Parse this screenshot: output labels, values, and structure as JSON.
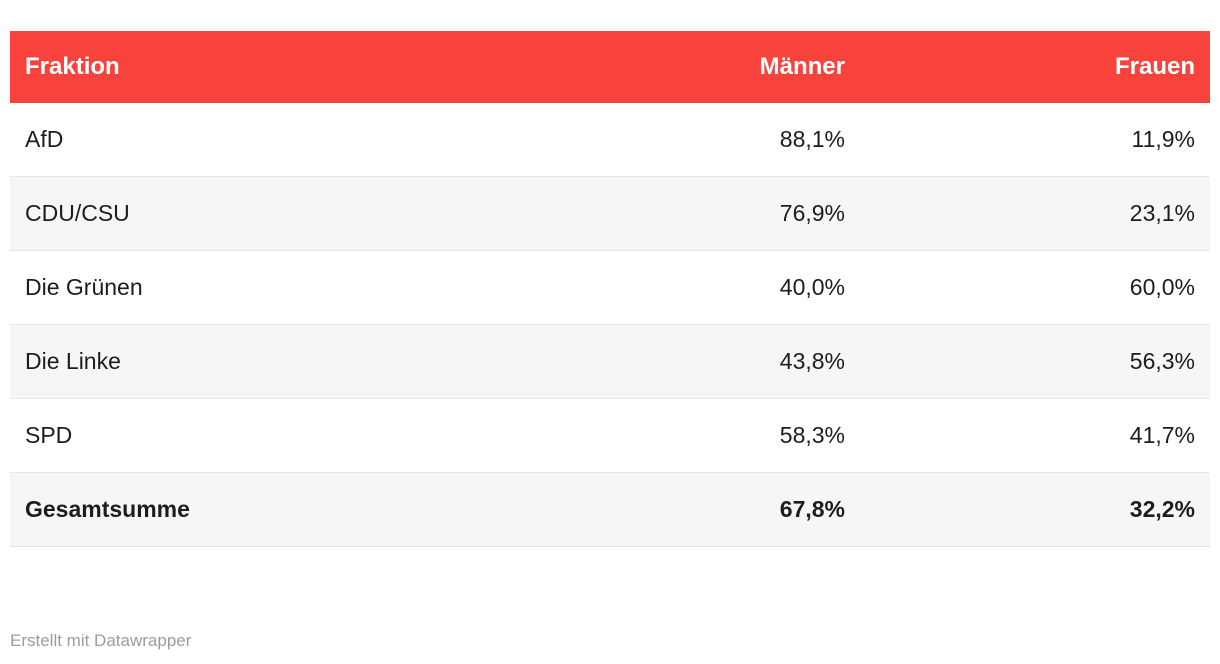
{
  "chart_data": {
    "type": "table",
    "columns": [
      "Fraktion",
      "Männer",
      "Frauen"
    ],
    "rows": [
      [
        "AfD",
        "88,1%",
        "11,9%"
      ],
      [
        "CDU/CSU",
        "76,9%",
        "23,1%"
      ],
      [
        "Die Grünen",
        "40,0%",
        "60,0%"
      ],
      [
        "Die Linke",
        "43,8%",
        "56,3%"
      ],
      [
        "SPD",
        "58,3%",
        "41,7%"
      ],
      [
        "Gesamtsumme",
        "67,8%",
        "32,2%"
      ]
    ],
    "total_row_label": "Gesamtsumme",
    "layout_hints": {
      "value_columns_align": "right",
      "zebra_striping": true,
      "total_row_bold": true
    }
  },
  "colors": {
    "header_background": "#f8423c",
    "header_text": "#ffffff",
    "stripe_background": "#f6f6f6",
    "row_border": "#e6e6e6",
    "body_text": "#1d1d1d",
    "attribution_text": "#9c9c9c"
  },
  "footer": {
    "attribution": "Erstellt mit Datawrapper"
  }
}
